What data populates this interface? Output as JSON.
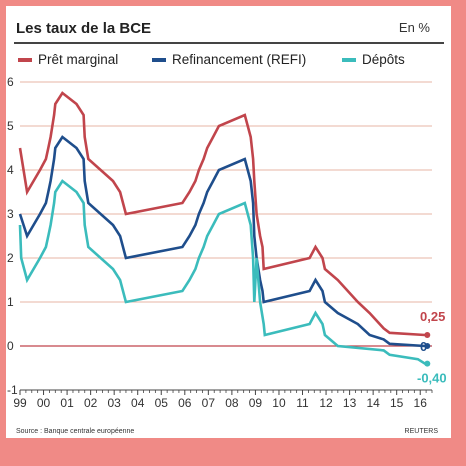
{
  "header": {
    "title": "Les taux de la BCE",
    "unit": "En %"
  },
  "footer": {
    "source": "Source : Banque centrale européenne",
    "credit": "REUTERS"
  },
  "colors": {
    "marginal": "#c1454c",
    "refi": "#1f4e8c",
    "depots": "#3bbcbc",
    "grid": "#e7b4a5",
    "zero": "#c1454c",
    "frame": "#f08a86"
  },
  "chart_data": {
    "type": "line",
    "title": "Les taux de la BCE",
    "unit": "En %",
    "xlabel": "",
    "ylabel": "",
    "xlim": [
      1999.0,
      2016.5
    ],
    "ylim": [
      -1,
      6
    ],
    "yticks": [
      "6",
      "5",
      "4",
      "3",
      "2",
      "1",
      "0",
      "-1"
    ],
    "xticks": [
      "99",
      "00",
      "01",
      "02",
      "03",
      "04",
      "05",
      "06",
      "07",
      "08",
      "09",
      "10",
      "11",
      "12",
      "13",
      "14",
      "15",
      "16"
    ],
    "grid": "horizontal",
    "legend_position": "top",
    "end_labels": [
      "0,25",
      "0",
      "-0,40"
    ],
    "series": [
      {
        "name": "Prêt marginal",
        "points": [
          [
            1999.0,
            4.5
          ],
          [
            1999.3,
            3.5
          ],
          [
            1999.85,
            4.0
          ],
          [
            2000.1,
            4.25
          ],
          [
            2000.2,
            4.5
          ],
          [
            2000.3,
            4.75
          ],
          [
            2000.45,
            5.25
          ],
          [
            2000.5,
            5.5
          ],
          [
            2000.8,
            5.75
          ],
          [
            2001.4,
            5.5
          ],
          [
            2001.7,
            5.25
          ],
          [
            2001.75,
            4.75
          ],
          [
            2001.9,
            4.25
          ],
          [
            2002.95,
            3.75
          ],
          [
            2003.25,
            3.5
          ],
          [
            2003.5,
            3.0
          ],
          [
            2005.9,
            3.25
          ],
          [
            2006.2,
            3.5
          ],
          [
            2006.45,
            3.75
          ],
          [
            2006.6,
            4.0
          ],
          [
            2006.8,
            4.25
          ],
          [
            2006.95,
            4.5
          ],
          [
            2007.2,
            4.75
          ],
          [
            2007.45,
            5.0
          ],
          [
            2008.55,
            5.25
          ],
          [
            2008.8,
            4.75
          ],
          [
            2008.9,
            4.25
          ],
          [
            2008.95,
            3.75
          ],
          [
            2009.05,
            3.0
          ],
          [
            2009.2,
            2.5
          ],
          [
            2009.3,
            2.25
          ],
          [
            2009.35,
            1.75
          ],
          [
            2011.3,
            2.0
          ],
          [
            2011.55,
            2.25
          ],
          [
            2011.85,
            2.0
          ],
          [
            2011.95,
            1.75
          ],
          [
            2012.5,
            1.5
          ],
          [
            2013.35,
            1.0
          ],
          [
            2013.85,
            0.75
          ],
          [
            2014.45,
            0.4
          ],
          [
            2014.7,
            0.3
          ],
          [
            2016.2,
            0.25
          ],
          [
            2016.3,
            0.25
          ]
        ]
      },
      {
        "name": "Refinancement (REFI)",
        "points": [
          [
            1999.0,
            3.0
          ],
          [
            1999.3,
            2.5
          ],
          [
            1999.85,
            3.0
          ],
          [
            2000.1,
            3.25
          ],
          [
            2000.2,
            3.5
          ],
          [
            2000.3,
            3.75
          ],
          [
            2000.45,
            4.25
          ],
          [
            2000.5,
            4.5
          ],
          [
            2000.8,
            4.75
          ],
          [
            2001.4,
            4.5
          ],
          [
            2001.7,
            4.25
          ],
          [
            2001.75,
            3.75
          ],
          [
            2001.9,
            3.25
          ],
          [
            2002.95,
            2.75
          ],
          [
            2003.25,
            2.5
          ],
          [
            2003.5,
            2.0
          ],
          [
            2005.9,
            2.25
          ],
          [
            2006.2,
            2.5
          ],
          [
            2006.45,
            2.75
          ],
          [
            2006.6,
            3.0
          ],
          [
            2006.8,
            3.25
          ],
          [
            2006.95,
            3.5
          ],
          [
            2007.2,
            3.75
          ],
          [
            2007.45,
            4.0
          ],
          [
            2008.55,
            4.25
          ],
          [
            2008.8,
            3.75
          ],
          [
            2008.9,
            3.25
          ],
          [
            2008.95,
            2.5
          ],
          [
            2009.05,
            2.0
          ],
          [
            2009.2,
            1.5
          ],
          [
            2009.3,
            1.25
          ],
          [
            2009.35,
            1.0
          ],
          [
            2011.3,
            1.25
          ],
          [
            2011.55,
            1.5
          ],
          [
            2011.85,
            1.25
          ],
          [
            2011.95,
            1.0
          ],
          [
            2012.5,
            0.75
          ],
          [
            2013.35,
            0.5
          ],
          [
            2013.85,
            0.25
          ],
          [
            2014.45,
            0.15
          ],
          [
            2014.7,
            0.05
          ],
          [
            2016.2,
            0.0
          ],
          [
            2016.3,
            0.0
          ]
        ]
      },
      {
        "name": "Dépôts",
        "points": [
          [
            1999.0,
            2.75
          ],
          [
            1999.05,
            2.0
          ],
          [
            1999.3,
            1.5
          ],
          [
            1999.85,
            2.0
          ],
          [
            2000.1,
            2.25
          ],
          [
            2000.2,
            2.5
          ],
          [
            2000.3,
            2.75
          ],
          [
            2000.45,
            3.25
          ],
          [
            2000.5,
            3.5
          ],
          [
            2000.8,
            3.75
          ],
          [
            2001.4,
            3.5
          ],
          [
            2001.7,
            3.25
          ],
          [
            2001.75,
            2.75
          ],
          [
            2001.9,
            2.25
          ],
          [
            2002.95,
            1.75
          ],
          [
            2003.25,
            1.5
          ],
          [
            2003.5,
            1.0
          ],
          [
            2005.9,
            1.25
          ],
          [
            2006.2,
            1.5
          ],
          [
            2006.45,
            1.75
          ],
          [
            2006.6,
            2.0
          ],
          [
            2006.8,
            2.25
          ],
          [
            2006.95,
            2.5
          ],
          [
            2007.2,
            2.75
          ],
          [
            2007.45,
            3.0
          ],
          [
            2008.55,
            3.25
          ],
          [
            2008.8,
            2.75
          ],
          [
            2008.9,
            2.0
          ],
          [
            2008.95,
            1.0
          ],
          [
            2009.05,
            2.0
          ],
          [
            2009.2,
            1.0
          ],
          [
            2009.35,
            0.5
          ],
          [
            2009.4,
            0.25
          ],
          [
            2011.3,
            0.5
          ],
          [
            2011.55,
            0.75
          ],
          [
            2011.85,
            0.5
          ],
          [
            2011.95,
            0.25
          ],
          [
            2012.5,
            0.0
          ],
          [
            2014.45,
            -0.1
          ],
          [
            2014.7,
            -0.2
          ],
          [
            2015.9,
            -0.3
          ],
          [
            2016.2,
            -0.4
          ],
          [
            2016.3,
            -0.4
          ]
        ]
      }
    ]
  }
}
